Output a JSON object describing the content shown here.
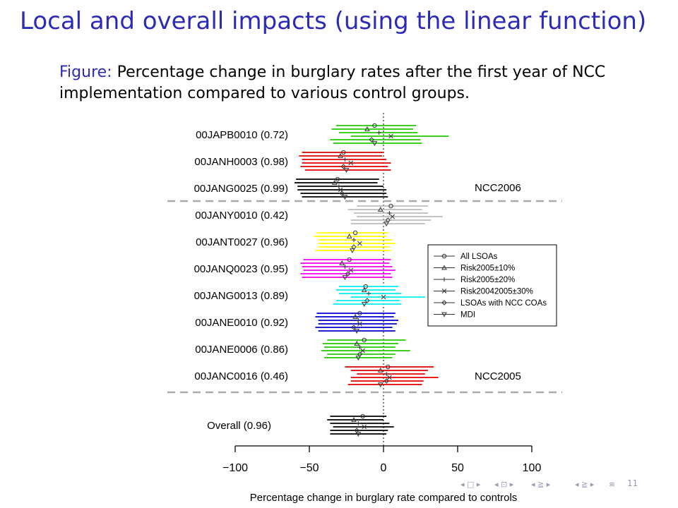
{
  "slide": {
    "title": "Local and overall impacts (using the linear function)",
    "caption_label": "Figure:",
    "caption_text": "Percentage change in burglary rates after the first year of NCC implementation compared to various control groups.",
    "page_number": "11"
  },
  "navigation": {
    "symbols": [
      "◂ □ ▸",
      "◂ ⊡ ▸",
      "◂ ≧ ▸",
      "◂ ≧ ▸",
      "≡"
    ]
  },
  "chart_data": {
    "type": "forest",
    "xlabel": "Percentage change in burglary rate compared to controls",
    "xlim": [
      -100,
      100
    ],
    "xticks": [
      -100,
      -50,
      0,
      50,
      100
    ],
    "reference_line": 0,
    "grid": false,
    "legend_position": "right",
    "series": [
      {
        "name": "All LSOAs",
        "marker": "circle"
      },
      {
        "name": "Risk2005±10%",
        "marker": "triangle-up"
      },
      {
        "name": "Risk2005±20%",
        "marker": "plus"
      },
      {
        "name": "Risk20042005±30%",
        "marker": "cross"
      },
      {
        "name": "LSOAs with NCC COAs",
        "marker": "diamond"
      },
      {
        "name": "MDI",
        "marker": "triangle-down"
      }
    ],
    "group_labels": [
      {
        "label": "NCC2006",
        "after_row": 2
      },
      {
        "label": "NCC2005",
        "after_row": 9
      }
    ],
    "rows": [
      {
        "label": "00JAPB0010 (0.72)",
        "color": "#22cc00",
        "estimates": [
          -6,
          -11,
          -3,
          5,
          -8,
          -6
        ],
        "ci": [
          [
            -32,
            22
          ],
          [
            -35,
            20
          ],
          [
            -30,
            23
          ],
          [
            -22,
            44
          ],
          [
            -36,
            25
          ],
          [
            -34,
            26
          ]
        ]
      },
      {
        "label": "00JANH0003 (0.98)",
        "color": "#e00000",
        "estimates": [
          -27,
          -29,
          -26,
          -22,
          -27,
          -25
        ],
        "ci": [
          [
            -55,
            0
          ],
          [
            -57,
            -1
          ],
          [
            -55,
            2
          ],
          [
            -55,
            5
          ],
          [
            -56,
            3
          ],
          [
            -53,
            5
          ]
        ]
      },
      {
        "label": "00JANG0025 (0.99)",
        "color": "#000000",
        "estimates": [
          -31,
          -33,
          -30,
          -29,
          -28,
          -26
        ],
        "ci": [
          [
            -59,
            -3
          ],
          [
            -60,
            -4
          ],
          [
            -58,
            0
          ],
          [
            -58,
            2
          ],
          [
            -56,
            2
          ],
          [
            -55,
            3
          ]
        ]
      },
      {
        "label": "00JANY0010 (0.42)",
        "color": "#bbbbbb",
        "estimates": [
          5,
          -2,
          4,
          6,
          3,
          2
        ],
        "ci": [
          [
            -18,
            30
          ],
          [
            -24,
            26
          ],
          [
            -20,
            30
          ],
          [
            -18,
            40
          ],
          [
            -22,
            32
          ],
          [
            -22,
            28
          ]
        ]
      },
      {
        "label": "00JANT0027 (0.96)",
        "color": "#ffff00",
        "estimates": [
          -19,
          -23,
          -20,
          -16,
          -20,
          -21
        ],
        "ci": [
          [
            -45,
            3
          ],
          [
            -47,
            2
          ],
          [
            -44,
            6
          ],
          [
            -44,
            8
          ],
          [
            -44,
            4
          ],
          [
            -46,
            5
          ]
        ]
      },
      {
        "label": "00JANQ0023 (0.95)",
        "color": "#ee00ee",
        "estimates": [
          -23,
          -28,
          -26,
          -22,
          -24,
          -26
        ],
        "ci": [
          [
            -54,
            5
          ],
          [
            -56,
            4
          ],
          [
            -55,
            6
          ],
          [
            -54,
            8
          ],
          [
            -56,
            5
          ],
          [
            -55,
            6
          ]
        ]
      },
      {
        "label": "00JANG0013 (0.89)",
        "color": "#00eeee",
        "estimates": [
          -12,
          -13,
          -10,
          0,
          -11,
          -13
        ],
        "ci": [
          [
            -30,
            10
          ],
          [
            -32,
            8
          ],
          [
            -30,
            12
          ],
          [
            -22,
            28
          ],
          [
            -32,
            11
          ],
          [
            -34,
            12
          ]
        ]
      },
      {
        "label": "00JANE0010 (0.92)",
        "color": "#0000cc",
        "estimates": [
          -16,
          -19,
          -17,
          -16,
          -20,
          -18
        ],
        "ci": [
          [
            -45,
            8
          ],
          [
            -46,
            7
          ],
          [
            -44,
            10
          ],
          [
            -44,
            9
          ],
          [
            -46,
            6
          ],
          [
            -44,
            8
          ]
        ]
      },
      {
        "label": "00JANE0006 (0.86)",
        "color": "#22cc00",
        "estimates": [
          -13,
          -18,
          -16,
          -14,
          -16,
          -17
        ],
        "ci": [
          [
            -38,
            15
          ],
          [
            -41,
            10
          ],
          [
            -40,
            8
          ],
          [
            -42,
            18
          ],
          [
            -38,
            8
          ],
          [
            -40,
            6
          ]
        ]
      },
      {
        "label": "00JANC0016 (0.46)",
        "color": "#e00000",
        "estimates": [
          3,
          -2,
          2,
          4,
          2,
          -2
        ],
        "ci": [
          [
            -26,
            34
          ],
          [
            -22,
            30
          ],
          [
            -18,
            28
          ],
          [
            -22,
            37
          ],
          [
            -22,
            27
          ],
          [
            -24,
            26
          ]
        ]
      },
      {
        "label": "Overall (0.96)",
        "color": "#000000",
        "estimates": [
          -14,
          -20,
          -17,
          -13,
          -18,
          -17
        ],
        "ci": [
          [
            -36,
            2
          ],
          [
            -38,
            0
          ],
          [
            -36,
            4
          ],
          [
            -34,
            7
          ],
          [
            -36,
            3
          ],
          [
            -36,
            2
          ]
        ]
      }
    ]
  }
}
